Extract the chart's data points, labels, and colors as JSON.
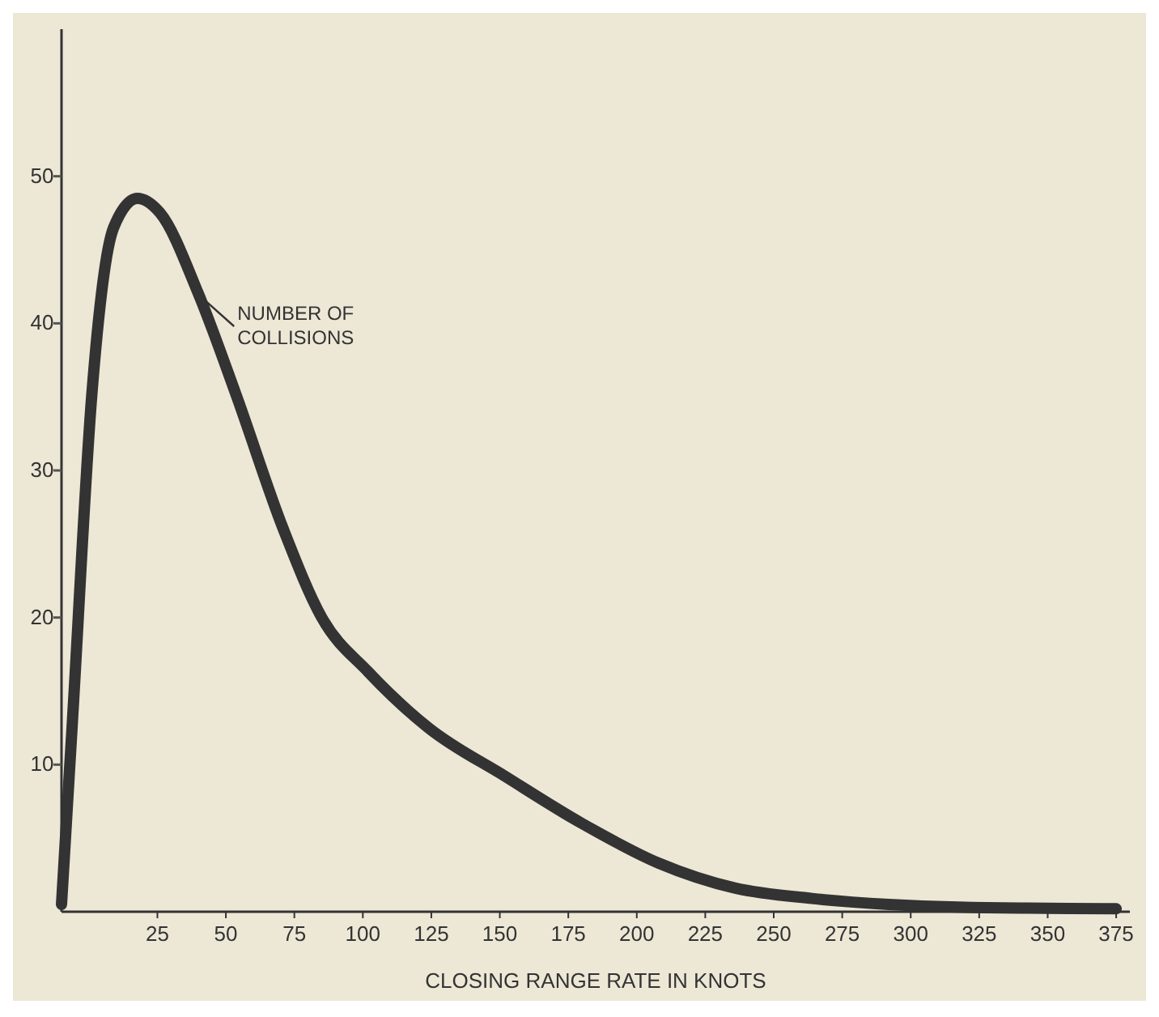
{
  "chart_data": {
    "type": "line",
    "xlabel": "CLOSING RANGE RATE IN KNOTS",
    "x": [
      -10,
      -6,
      1,
      9,
      17.7,
      26,
      40,
      54,
      71,
      85,
      102,
      124,
      152,
      180,
      208,
      236,
      264,
      292,
      320,
      375
    ],
    "series": [
      {
        "name": "NUMBER OF COLLISIONS",
        "color": "#333333",
        "values": [
          0.5,
          13,
          35,
          46.5,
          48.5,
          47.5,
          42,
          35,
          26,
          20,
          16.3,
          12.5,
          9.2,
          6,
          3.3,
          1.6,
          0.9,
          0.5,
          0.3,
          0.2
        ]
      }
    ],
    "xlim": [
      -10,
      380
    ],
    "xticks": [
      25,
      50,
      75,
      100,
      125,
      150,
      175,
      200,
      225,
      250,
      275,
      300,
      325,
      350,
      375
    ],
    "ylim": [
      0,
      60
    ],
    "yticks": [
      10,
      20,
      30,
      40,
      50
    ],
    "grid": false,
    "legend": "top left",
    "marker": "none",
    "line_style": "solid"
  }
}
